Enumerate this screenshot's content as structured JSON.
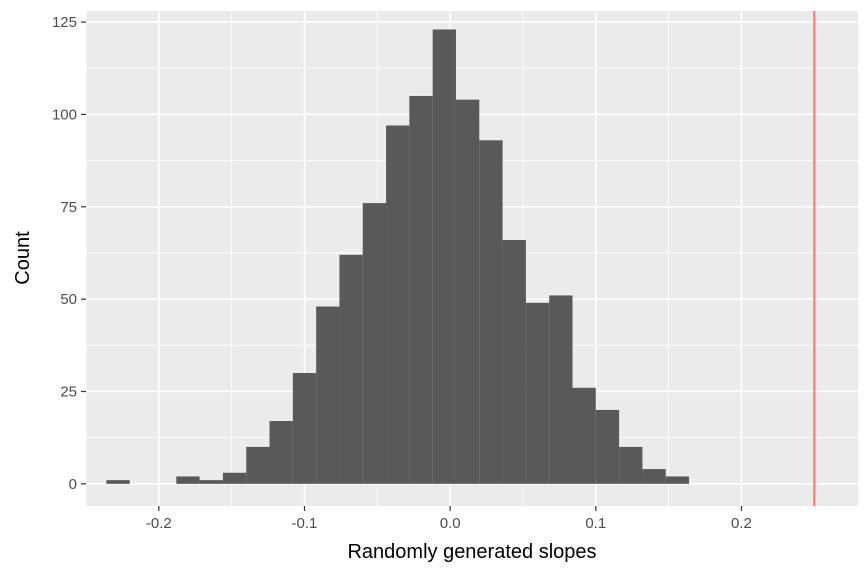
{
  "chart_data": {
    "type": "bar",
    "subtype": "histogram",
    "xlabel": "Randomly generated slopes",
    "ylabel": "Count",
    "xlim": [
      -0.25,
      0.28
    ],
    "ylim": [
      -6,
      128
    ],
    "xticks": [
      -0.2,
      -0.1,
      0.0,
      0.1,
      0.2
    ],
    "xtick_labels": [
      "-0.2",
      "-0.1",
      "0.0",
      "0.1",
      "0.2"
    ],
    "yticks": [
      0,
      25,
      50,
      75,
      100,
      125
    ],
    "ytick_labels": [
      "0",
      "25",
      "50",
      "75",
      "100",
      "125"
    ],
    "grid": true,
    "bin_width": 0.016,
    "bin_starts": [
      -0.236,
      -0.22,
      -0.204,
      -0.188,
      -0.172,
      -0.156,
      -0.14,
      -0.124,
      -0.108,
      -0.092,
      -0.076,
      -0.06,
      -0.044,
      -0.028,
      -0.012,
      0.004,
      0.02,
      0.036,
      0.052,
      0.068,
      0.084,
      0.1,
      0.116,
      0.132,
      0.148
    ],
    "values": [
      1,
      0,
      0,
      2,
      1,
      3,
      10,
      17,
      30,
      48,
      62,
      76,
      97,
      105,
      123,
      104,
      93,
      66,
      49,
      51,
      26,
      20,
      10,
      4,
      2
    ],
    "vline": {
      "x": 0.25
    },
    "colors": {
      "bar": "#595959",
      "panel": "#ebebeb",
      "grid": "#ffffff",
      "vline": "#f8766d"
    }
  }
}
